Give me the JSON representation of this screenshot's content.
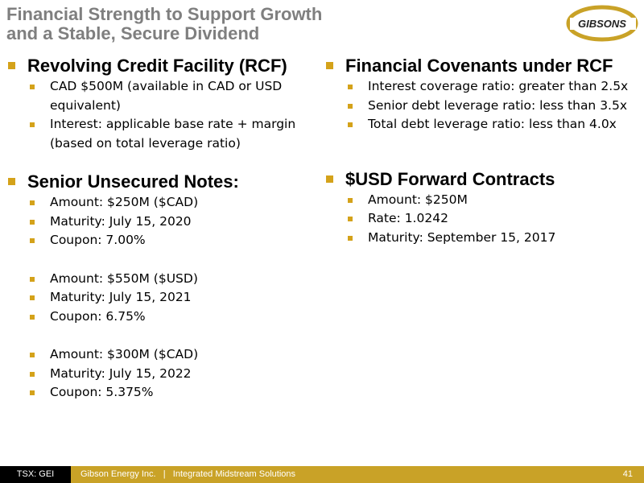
{
  "header": {
    "title": [
      "Financial Strength to Support Growth",
      "and a Stable, Secure Dividend"
    ],
    "logo": "GIBSONS"
  },
  "columns": [
    {
      "sections": [
        {
          "heading": "Revolving Credit Facility (RCF)",
          "groups": [
            [
              "CAD $500M (available in CAD or USD equivalent)",
              "Interest: applicable base rate + margin (based on total leverage ratio)"
            ]
          ]
        },
        {
          "heading": "Senior Unsecured Notes:",
          "groups": [
            [
              "Amount: $250M ($CAD)",
              "Maturity: July 15, 2020",
              "Coupon: 7.00%"
            ],
            [
              "Amount: $550M ($USD)",
              "Maturity: July 15, 2021",
              "Coupon: 6.75%"
            ],
            [
              "Amount: $300M ($CAD)",
              "Maturity: July 15, 2022",
              "Coupon: 5.375%"
            ]
          ]
        }
      ]
    },
    {
      "sections": [
        {
          "heading": "Financial Covenants under RCF",
          "groups": [
            [
              "Interest coverage ratio: greater than 2.5x",
              "Senior debt leverage ratio: less than 3.5x",
              "Total debt leverage ratio: less than 4.0x"
            ]
          ]
        },
        {
          "heading": "$USD Forward Contracts",
          "groups": [
            [
              "Amount: $250M",
              "Rate: 1.0242",
              "Maturity: September 15, 2017"
            ]
          ]
        }
      ]
    }
  ],
  "footer": {
    "ticker": "TSX: GEI",
    "company": "Gibson Energy Inc.",
    "separator": "|",
    "tagline": "Integrated Midstream Solutions",
    "page": "41"
  }
}
